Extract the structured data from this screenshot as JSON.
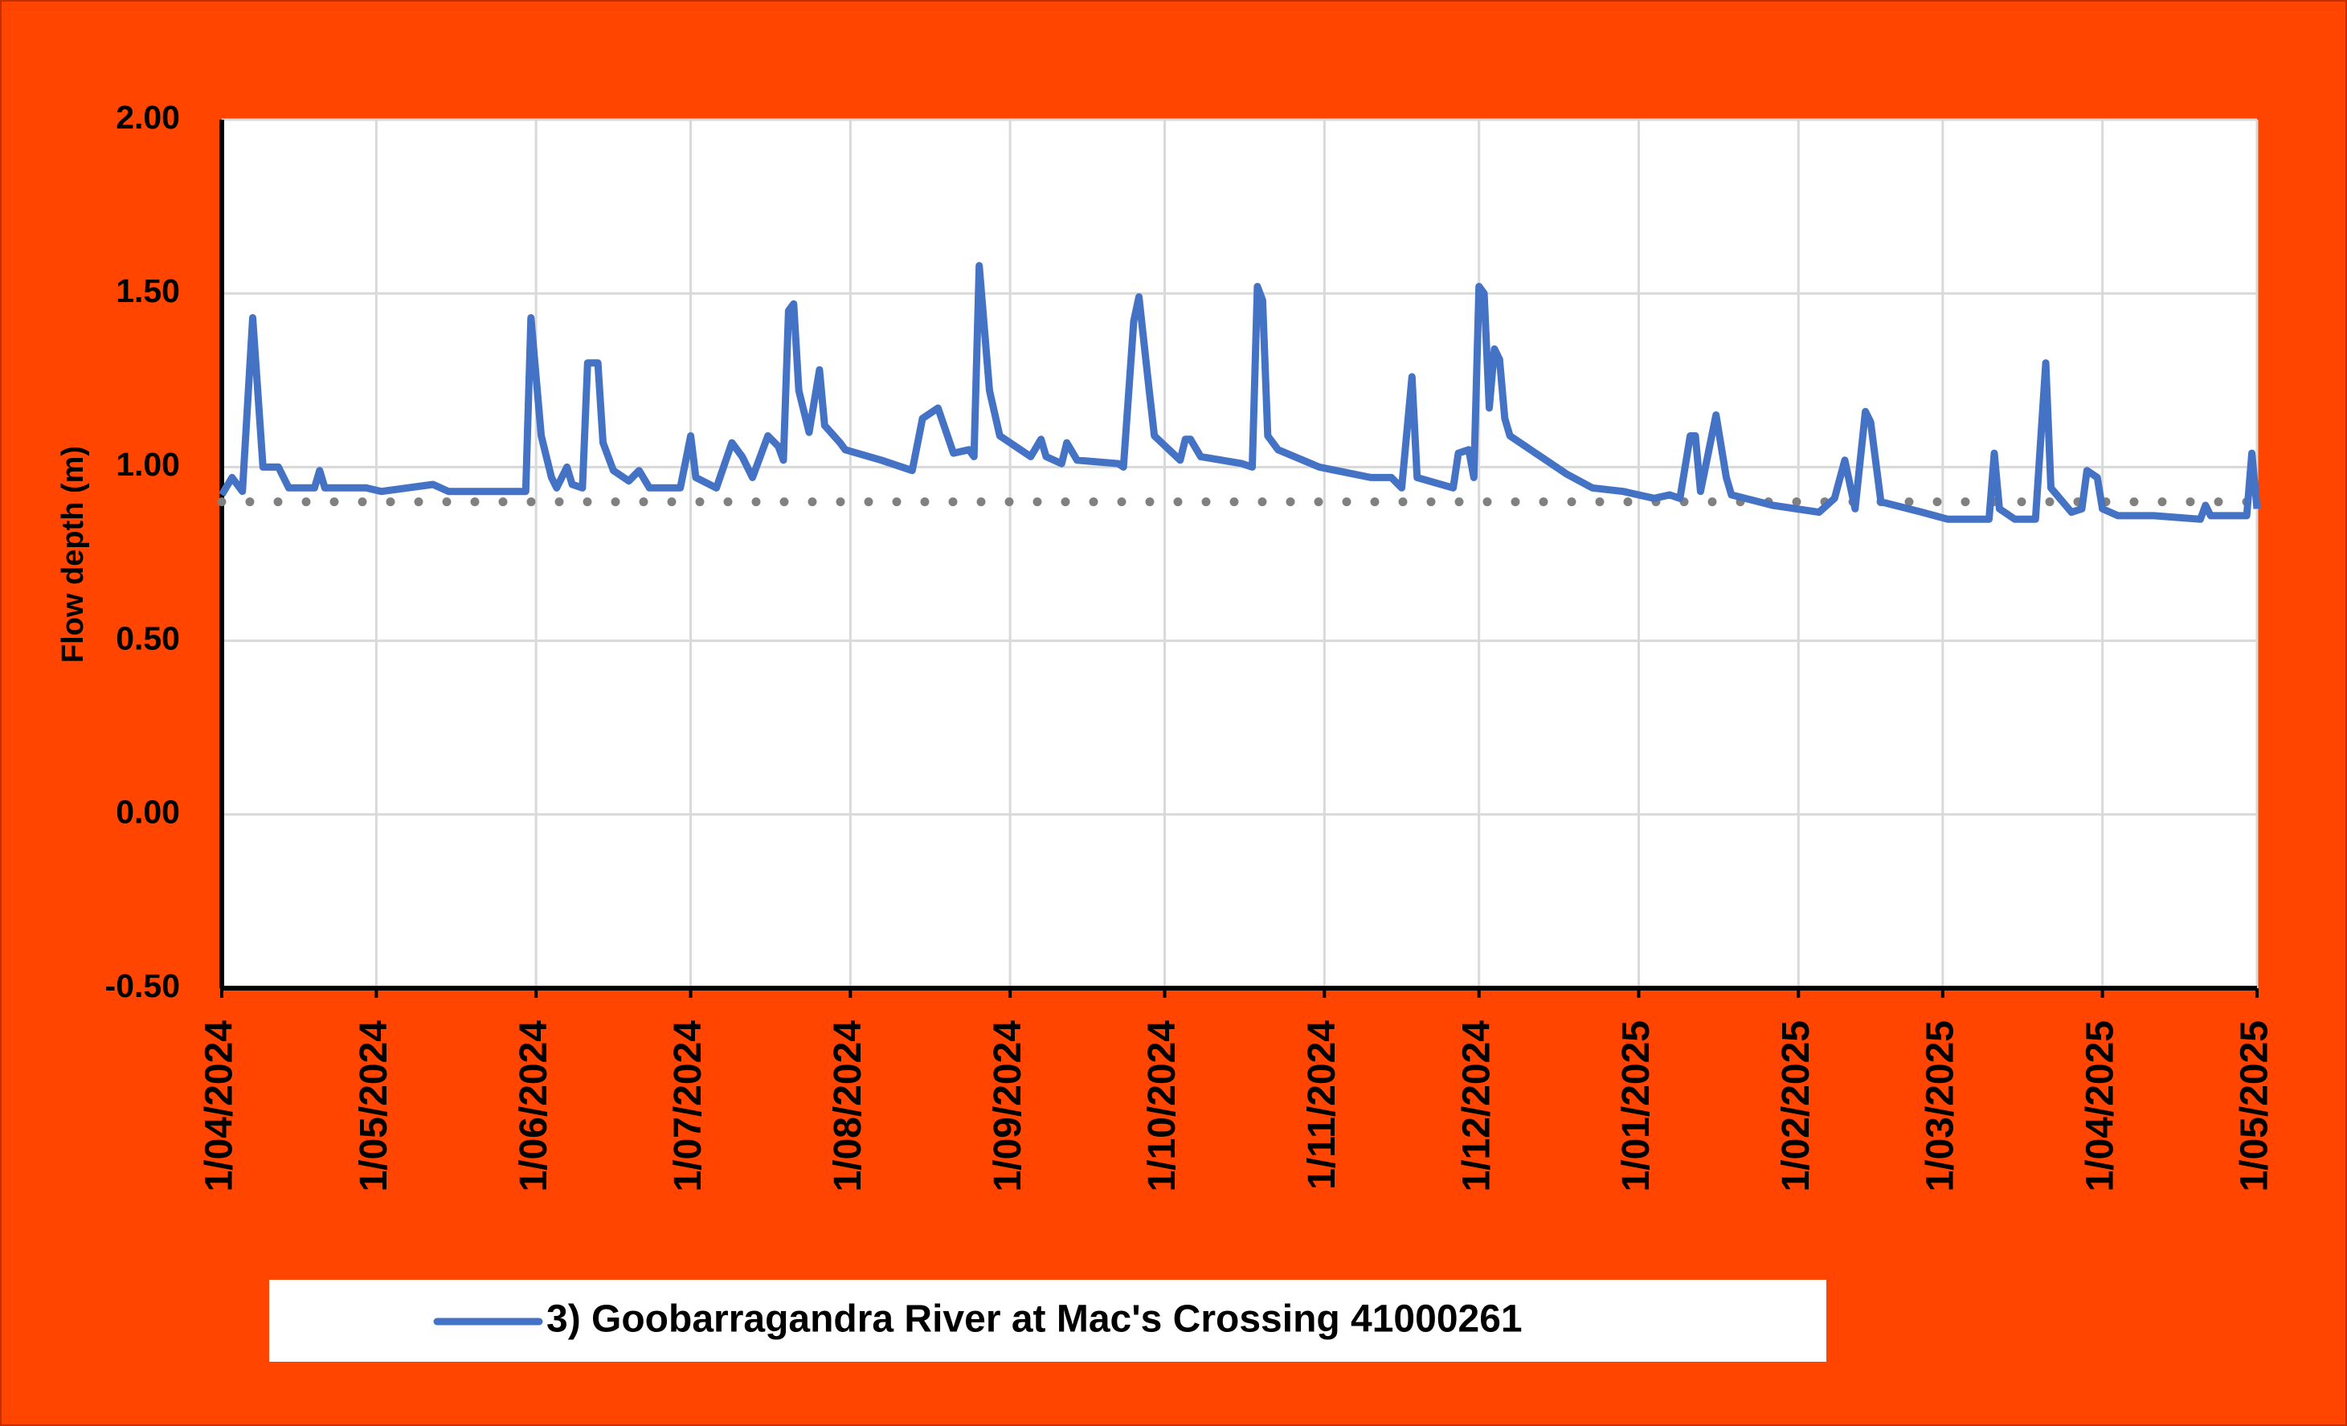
{
  "chart_data": {
    "type": "line",
    "y_axis_label": "Flow depth (m)",
    "xlim": [
      "1/04/2024",
      "1/05/2025"
    ],
    "xticks": [
      "1/04/2024",
      "1/05/2024",
      "1/06/2024",
      "1/07/2024",
      "1/08/2024",
      "1/09/2024",
      "1/10/2024",
      "1/11/2024",
      "1/12/2024",
      "1/01/2025",
      "1/02/2025",
      "1/03/2025",
      "1/04/2025",
      "1/05/2025"
    ],
    "ylim": [
      -0.5,
      2
    ],
    "yticks": [
      {
        "value": -0.5,
        "label": "-0.50"
      },
      {
        "value": 0,
        "label": "0.00"
      },
      {
        "value": 0.5,
        "label": "0.50"
      },
      {
        "value": 1,
        "label": "1.00"
      },
      {
        "value": 1.5,
        "label": "1.50"
      },
      {
        "value": 2,
        "label": "2.00"
      }
    ],
    "grid": true,
    "legend": "bottom",
    "reference_line": {
      "value": 0.9,
      "color": "#808080"
    },
    "x": [
      "1/04/2024",
      "3/04/2024",
      "5/04/2024",
      "7/04/2024",
      "9/04/2024",
      "12/04/2024",
      "14/04/2024",
      "19/04/2024",
      "20/04/2024",
      "21/04/2024",
      "29/04/2024",
      "2/05/2024",
      "12/05/2024",
      "15/05/2024",
      "30/05/2024",
      "31/05/2024",
      "2/06/2024",
      "4/06/2024",
      "5/06/2024",
      "7/06/2024",
      "8/06/2024",
      "10/06/2024",
      "11/06/2024",
      "13/06/2024",
      "14/06/2024",
      "16/06/2024",
      "19/06/2024",
      "21/06/2024",
      "23/06/2024",
      "29/06/2024",
      "1/07/2024",
      "2/07/2024",
      "6/07/2024",
      "9/07/2024",
      "11/07/2024",
      "13/07/2024",
      "16/07/2024",
      "18/07/2024",
      "19/07/2024",
      "20/07/2024",
      "21/07/2024",
      "22/07/2024",
      "24/07/2024",
      "26/07/2024",
      "27/07/2024",
      "30/07/2024",
      "31/07/2024",
      "7/08/2024",
      "13/08/2024",
      "15/08/2024",
      "18/08/2024",
      "21/08/2024",
      "24/08/2024",
      "25/08/2024",
      "26/08/2024",
      "28/08/2024",
      "30/08/2024",
      "5/09/2024",
      "7/09/2024",
      "8/09/2024",
      "11/09/2024",
      "12/09/2024",
      "14/09/2024",
      "22/09/2024",
      "23/09/2024",
      "25/09/2024",
      "26/09/2024",
      "28/09/2024",
      "29/09/2024",
      "4/10/2024",
      "5/10/2024",
      "6/10/2024",
      "8/10/2024",
      "16/10/2024",
      "18/10/2024",
      "19/10/2024",
      "20/10/2024",
      "21/10/2024",
      "23/10/2024",
      "31/10/2024",
      "10/11/2024",
      "14/11/2024",
      "16/11/2024",
      "18/11/2024",
      "19/11/2024",
      "26/11/2024",
      "27/11/2024",
      "29/11/2024",
      "30/11/2024",
      "1/12/2024",
      "2/12/2024",
      "3/12/2024",
      "4/12/2024",
      "5/12/2024",
      "6/12/2024",
      "7/12/2024",
      "13/12/2024",
      "18/12/2024",
      "23/12/2024",
      "29/12/2024",
      "4/01/2025",
      "7/01/2025",
      "9/01/2025",
      "11/01/2025",
      "12/01/2025",
      "13/01/2025",
      "16/01/2025",
      "18/01/2025",
      "19/01/2025",
      "27/01/2025",
      "5/02/2025",
      "8/02/2025",
      "10/02/2025",
      "12/02/2025",
      "14/02/2025",
      "15/02/2025",
      "17/02/2025",
      "25/02/2025",
      "2/03/2025",
      "10/03/2025",
      "11/03/2025",
      "12/03/2025",
      "15/03/2025",
      "19/03/2025",
      "21/03/2025",
      "22/03/2025",
      "26/03/2025",
      "28/03/2025",
      "29/03/2025",
      "31/03/2025",
      "1/04/2025",
      "4/04/2025",
      "11/04/2025",
      "20/04/2025",
      "21/04/2025",
      "22/04/2025",
      "29/04/2025",
      "30/04/2025",
      "1/05/2025"
    ],
    "series": [
      {
        "name": "3) Goobarragandra River at Mac's Crossing 41000261",
        "color": "#4472c4",
        "values": [
          0.92,
          0.97,
          0.93,
          1.43,
          1.0,
          1.0,
          0.94,
          0.94,
          0.99,
          0.94,
          0.94,
          0.93,
          0.95,
          0.93,
          0.93,
          1.43,
          1.09,
          0.97,
          0.94,
          1.0,
          0.95,
          0.94,
          1.3,
          1.3,
          1.07,
          0.99,
          0.96,
          0.99,
          0.94,
          0.94,
          1.09,
          0.97,
          0.94,
          1.07,
          1.03,
          0.97,
          1.09,
          1.06,
          1.02,
          1.45,
          1.47,
          1.22,
          1.1,
          1.28,
          1.12,
          1.07,
          1.05,
          1.02,
          0.99,
          1.14,
          1.17,
          1.04,
          1.05,
          1.03,
          1.58,
          1.22,
          1.09,
          1.03,
          1.08,
          1.03,
          1.01,
          1.07,
          1.02,
          1.01,
          1.0,
          1.42,
          1.49,
          1.22,
          1.09,
          1.02,
          1.08,
          1.08,
          1.03,
          1.01,
          1.0,
          1.52,
          1.48,
          1.09,
          1.05,
          1.0,
          0.97,
          0.97,
          0.94,
          1.26,
          0.97,
          0.94,
          1.04,
          1.05,
          0.97,
          1.52,
          1.5,
          1.17,
          1.34,
          1.31,
          1.14,
          1.09,
          1.03,
          0.98,
          0.94,
          0.93,
          0.91,
          0.92,
          0.91,
          1.09,
          1.09,
          0.93,
          1.15,
          0.97,
          0.92,
          0.89,
          0.87,
          0.91,
          1.02,
          0.88,
          1.16,
          1.13,
          0.9,
          0.87,
          0.85,
          0.85,
          1.04,
          0.88,
          0.85,
          0.85,
          1.3,
          0.94,
          0.87,
          0.88,
          0.99,
          0.97,
          0.88,
          0.86,
          0.86,
          0.85,
          0.89,
          0.86,
          0.86,
          1.04,
          0.88
        ]
      }
    ]
  }
}
